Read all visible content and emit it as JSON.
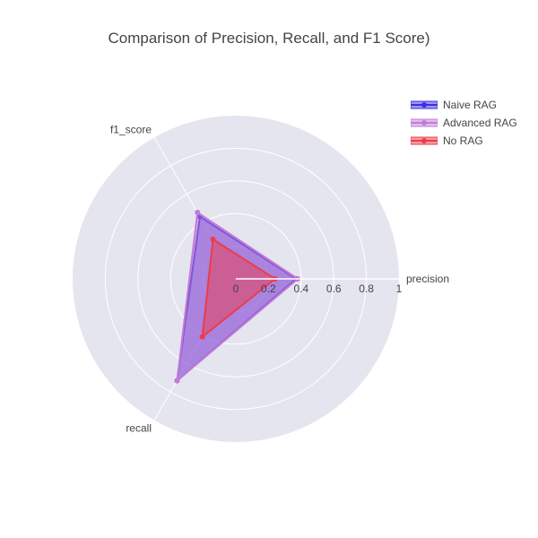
{
  "chart_data": {
    "type": "radar",
    "title": "Comparison of Precision, Recall, and F1 Score)",
    "categories": [
      "precision",
      "recall",
      "f1_score"
    ],
    "radial_range": [
      0,
      1
    ],
    "radial_ticks": [
      "0",
      "0.2",
      "0.4",
      "0.6",
      "0.8",
      "1"
    ],
    "grid": true,
    "legend_position": "top-right",
    "series": [
      {
        "name": "Naive RAG",
        "values": [
          0.37,
          0.72,
          0.44
        ],
        "color": "#3b2fe0"
      },
      {
        "name": "Advanced RAG",
        "values": [
          0.38,
          0.72,
          0.47
        ],
        "color": "#c27bd6"
      },
      {
        "name": "No RAG",
        "values": [
          0.24,
          0.41,
          0.28
        ],
        "color": "#ee3b4b"
      }
    ]
  }
}
